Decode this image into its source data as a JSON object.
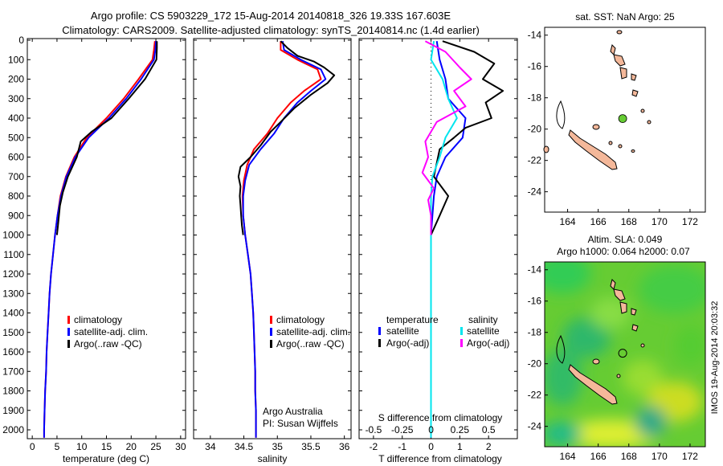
{
  "header": {
    "line1": "Argo profile: CS 5903229_172 15-Aug-2014 20140818_326 19.33S 167.603E",
    "line2": "Climatology: CARS2009. Satellite-adjusted climatology: synTS_20140814.nc (1.4d earlier)"
  },
  "colors": {
    "clim": "#ff0000",
    "sat": "#0000ff",
    "argo": "#000000",
    "sat_s": "#00e5ee",
    "argo_s": "#ff00ff",
    "land": "#f4b89a"
  },
  "chart_data": [
    {
      "id": "temperature",
      "type": "line",
      "xlabel": "temperature (deg C)",
      "ylabel": "",
      "xlim": [
        -1,
        31
      ],
      "ylim": [
        2050,
        0
      ],
      "xticks": [
        0,
        5,
        10,
        15,
        20,
        25,
        30
      ],
      "yticks": [
        0,
        100,
        200,
        300,
        400,
        500,
        600,
        700,
        800,
        900,
        1000,
        1100,
        1200,
        1300,
        1400,
        1500,
        1600,
        1700,
        1800,
        1900,
        2000
      ],
      "legend": [
        "climatology",
        "satellite-adj. clim.",
        "Argo(..raw -QC)"
      ],
      "series": [
        {
          "name": "climatology",
          "color": "#ff0000",
          "points": [
            [
              24.8,
              5
            ],
            [
              24.6,
              50
            ],
            [
              24.3,
              100
            ],
            [
              21.5,
              200
            ],
            [
              18.5,
              300
            ],
            [
              15,
              400
            ],
            [
              11,
              500
            ],
            [
              8.5,
              600
            ],
            [
              6.8,
              700
            ],
            [
              5.7,
              800
            ],
            [
              5.1,
              900
            ],
            [
              4.6,
              1000
            ],
            [
              4.2,
              1100
            ],
            [
              3.8,
              1200
            ],
            [
              3.5,
              1300
            ],
            [
              3.3,
              1400
            ],
            [
              3.1,
              1500
            ],
            [
              2.9,
              1600
            ],
            [
              2.8,
              1700
            ],
            [
              2.6,
              1800
            ],
            [
              2.5,
              1900
            ],
            [
              2.4,
              2000
            ],
            [
              2.4,
              2040
            ]
          ]
        },
        {
          "name": "satellite-adj. clim.",
          "color": "#0000ff",
          "points": [
            [
              25.0,
              5
            ],
            [
              24.9,
              50
            ],
            [
              24.6,
              100
            ],
            [
              22,
              200
            ],
            [
              19,
              300
            ],
            [
              15.5,
              400
            ],
            [
              11.4,
              500
            ],
            [
              8.7,
              600
            ],
            [
              6.9,
              700
            ],
            [
              5.8,
              800
            ],
            [
              5.1,
              900
            ],
            [
              4.6,
              1000
            ],
            [
              4.2,
              1100
            ],
            [
              3.8,
              1200
            ],
            [
              3.5,
              1300
            ],
            [
              3.3,
              1400
            ],
            [
              3.1,
              1500
            ],
            [
              2.9,
              1600
            ],
            [
              2.8,
              1700
            ],
            [
              2.6,
              1800
            ],
            [
              2.5,
              1900
            ],
            [
              2.4,
              2000
            ],
            [
              2.4,
              2040
            ]
          ]
        },
        {
          "name": "Argo(..raw -QC)",
          "color": "#000000",
          "points": [
            [
              25.2,
              5
            ],
            [
              25.2,
              40
            ],
            [
              25.1,
              100
            ],
            [
              22.8,
              200
            ],
            [
              19.5,
              300
            ],
            [
              16,
              400
            ],
            [
              12,
              470
            ],
            [
              9.8,
              520
            ],
            [
              9,
              600
            ],
            [
              7.2,
              700
            ],
            [
              6.2,
              780
            ],
            [
              5.6,
              850
            ],
            [
              5.2,
              950
            ],
            [
              5.0,
              1000
            ]
          ]
        }
      ]
    },
    {
      "id": "salinity",
      "type": "line",
      "xlabel": "salinity",
      "ylabel": "",
      "xlim": [
        33.75,
        36.1
      ],
      "ylim": [
        2050,
        0
      ],
      "xticks": [
        34,
        34.5,
        35,
        35.5,
        36
      ],
      "legend": [
        "climatology",
        "satellite-adj. clim.",
        "Argo(..raw -QC)"
      ],
      "annotation": [
        "Argo Australia",
        "PI: Susan Wijffels"
      ],
      "series": [
        {
          "name": "climatology",
          "color": "#ff0000",
          "points": [
            [
              35.05,
              5
            ],
            [
              35.05,
              50
            ],
            [
              35.3,
              100
            ],
            [
              35.6,
              150
            ],
            [
              35.65,
              200
            ],
            [
              35.4,
              260
            ],
            [
              35.2,
              320
            ],
            [
              35.0,
              400
            ],
            [
              34.85,
              480
            ],
            [
              34.65,
              560
            ],
            [
              34.55,
              640
            ],
            [
              34.5,
              720
            ],
            [
              34.48,
              800
            ],
            [
              34.49,
              900
            ],
            [
              34.52,
              1000
            ],
            [
              34.56,
              1100
            ],
            [
              34.6,
              1200
            ],
            [
              34.62,
              1300
            ],
            [
              34.64,
              1400
            ],
            [
              34.65,
              1500
            ],
            [
              34.66,
              1600
            ],
            [
              34.67,
              1700
            ],
            [
              34.67,
              1800
            ],
            [
              34.68,
              1900
            ],
            [
              34.68,
              2040
            ]
          ]
        },
        {
          "name": "satellite-adj. clim.",
          "color": "#0000ff",
          "points": [
            [
              35.08,
              5
            ],
            [
              35.1,
              50
            ],
            [
              35.35,
              100
            ],
            [
              35.65,
              150
            ],
            [
              35.72,
              200
            ],
            [
              35.5,
              260
            ],
            [
              35.3,
              320
            ],
            [
              35.1,
              400
            ],
            [
              34.95,
              480
            ],
            [
              34.75,
              560
            ],
            [
              34.58,
              640
            ],
            [
              34.52,
              720
            ],
            [
              34.49,
              800
            ],
            [
              34.49,
              900
            ],
            [
              34.52,
              1000
            ],
            [
              34.56,
              1100
            ],
            [
              34.6,
              1200
            ],
            [
              34.62,
              1300
            ],
            [
              34.64,
              1400
            ],
            [
              34.65,
              1500
            ],
            [
              34.66,
              1600
            ],
            [
              34.67,
              1700
            ],
            [
              34.67,
              1800
            ],
            [
              34.68,
              1900
            ],
            [
              34.68,
              2040
            ]
          ]
        },
        {
          "name": "Argo(..raw -QC)",
          "color": "#000000",
          "points": [
            [
              35.05,
              5
            ],
            [
              35.15,
              40
            ],
            [
              35.3,
              80
            ],
            [
              35.55,
              110
            ],
            [
              35.7,
              140
            ],
            [
              35.85,
              180
            ],
            [
              35.75,
              220
            ],
            [
              35.5,
              280
            ],
            [
              35.25,
              350
            ],
            [
              35.05,
              420
            ],
            [
              34.9,
              470
            ],
            [
              34.75,
              540
            ],
            [
              34.6,
              600
            ],
            [
              34.45,
              650
            ],
            [
              34.42,
              700
            ],
            [
              34.45,
              750
            ],
            [
              34.44,
              800
            ],
            [
              34.45,
              850
            ],
            [
              34.46,
              900
            ],
            [
              34.47,
              950
            ],
            [
              34.49,
              1000
            ]
          ]
        }
      ]
    },
    {
      "id": "difference",
      "type": "line",
      "xlabel": "T difference from climatology",
      "xlabel2": "S difference from climatology",
      "xlim": [
        -2.5,
        3
      ],
      "ylim": [
        2050,
        0
      ],
      "xticks": [
        -2,
        -1,
        0,
        1,
        2
      ],
      "xticks2": [
        "-0.5",
        "-0.25",
        "0",
        "0.25",
        "0.5"
      ],
      "legend_headers": [
        "temperature",
        "salinity"
      ],
      "legend": [
        "satellite",
        "Argo(-adj)",
        "satellite",
        "Argo(-adj)"
      ],
      "series": [
        {
          "name": "satellite",
          "color": "#0000ff",
          "points": [
            [
              0.2,
              5
            ],
            [
              0.3,
              100
            ],
            [
              0.5,
              200
            ],
            [
              0.6,
              300
            ],
            [
              1.2,
              400
            ],
            [
              1.1,
              500
            ],
            [
              0.5,
              600
            ],
            [
              0.2,
              700
            ],
            [
              0.1,
              800
            ],
            [
              0.05,
              900
            ],
            [
              0,
              1000
            ],
            [
              0,
              1500
            ],
            [
              0,
              2040
            ]
          ]
        },
        {
          "name": "Argo(-adj)",
          "color": "#000000",
          "points": [
            [
              0.4,
              5
            ],
            [
              1.5,
              60
            ],
            [
              2.2,
              120
            ],
            [
              1.8,
              200
            ],
            [
              2.5,
              260
            ],
            [
              1.9,
              320
            ],
            [
              2.1,
              400
            ],
            [
              1.2,
              450
            ],
            [
              0.8,
              500
            ],
            [
              0.3,
              560
            ],
            [
              0.1,
              700
            ],
            [
              0.6,
              800
            ],
            [
              0.3,
              900
            ],
            [
              0.0,
              1000
            ]
          ]
        },
        {
          "name": "satellite",
          "color": "#00e5ee",
          "points": [
            [
              0.1,
              5
            ],
            [
              0.0,
              100
            ],
            [
              0.4,
              200
            ],
            [
              0.6,
              300
            ],
            [
              0.9,
              400
            ],
            [
              0.5,
              500
            ],
            [
              0.3,
              600
            ],
            [
              0.05,
              700
            ],
            [
              0.0,
              800
            ],
            [
              0.0,
              1000
            ],
            [
              0.0,
              2040
            ]
          ]
        },
        {
          "name": "Argo(-adj)",
          "color": "#ff00ff",
          "points": [
            [
              -0.2,
              5
            ],
            [
              0.5,
              60
            ],
            [
              1.0,
              140
            ],
            [
              1.4,
              200
            ],
            [
              0.8,
              260
            ],
            [
              1.2,
              340
            ],
            [
              0.2,
              420
            ],
            [
              -0.2,
              520
            ],
            [
              -0.1,
              600
            ],
            [
              -0.3,
              680
            ],
            [
              0.1,
              760
            ],
            [
              -0.1,
              820
            ],
            [
              0.0,
              900
            ],
            [
              0.0,
              1000
            ]
          ]
        }
      ]
    },
    {
      "id": "map-sst",
      "type": "scatter",
      "title": "sat. SST: NaN  Argo: 25",
      "xlim": [
        162.5,
        173
      ],
      "ylim": [
        -25.3,
        -13.5
      ],
      "xticks": [
        164,
        166,
        168,
        170,
        172
      ],
      "yticks": [
        -14,
        -16,
        -18,
        -20,
        -22,
        -24
      ],
      "series": [
        {
          "name": "Argo float",
          "color": "#66cc33",
          "points": [
            [
              167.6,
              -19.33
            ]
          ]
        }
      ]
    },
    {
      "id": "map-sla",
      "type": "heatmap",
      "title": "Altim. SLA: 0.049",
      "subtitle": "Argo h1000: 0.064 h2000: 0.07",
      "xlim": [
        162.5,
        173
      ],
      "ylim": [
        -25.3,
        -13.5
      ],
      "xticks": [
        164,
        166,
        168,
        170,
        172
      ],
      "yticks": [
        -14,
        -16,
        -18,
        -20,
        -22,
        -24
      ],
      "series": [
        {
          "name": "Argo float",
          "color": "#000000",
          "points": [
            [
              167.6,
              -19.33
            ]
          ]
        }
      ]
    }
  ],
  "side_label": "IMOS 19-Aug-2014 20:03:32"
}
